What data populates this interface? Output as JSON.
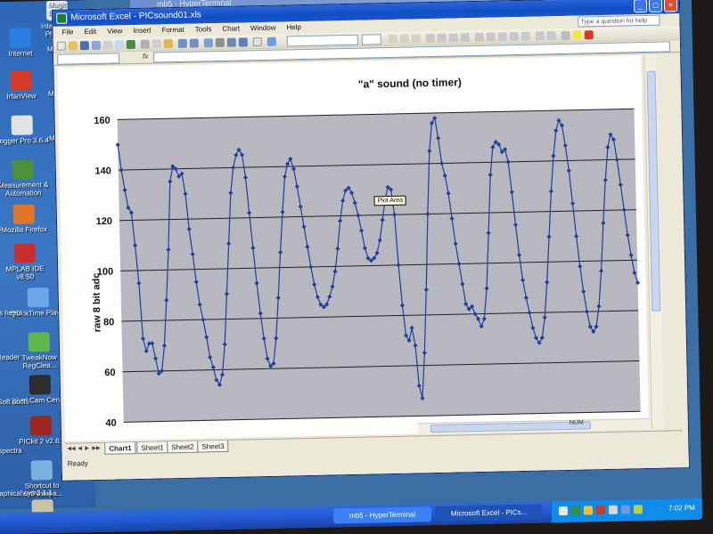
{
  "background_window": {
    "title": "mb5 - HyperTerminal"
  },
  "desktop": {
    "icons": [
      {
        "label": "Interactive Physics",
        "icon": "physics-icon",
        "color": "#d9e4f5"
      },
      {
        "label": "Internet",
        "icon": "internet-explorer-icon",
        "color": "#2a7de1"
      },
      {
        "label": "IrfanView",
        "icon": "irfanview-icon",
        "color": "#d23a2a"
      },
      {
        "label": "Logger Pro 3.6.4",
        "icon": "logger-pro-icon",
        "color": "#e2e2e2"
      },
      {
        "label": "Measurement & Automation",
        "icon": "measurement-icon",
        "color": "#4a8f3a"
      },
      {
        "label": "Mozilla Firefox",
        "icon": "firefox-icon",
        "color": "#e0762a"
      },
      {
        "label": "MPLAB IDE v8.50",
        "icon": "mplab-icon",
        "color": "#c63030"
      },
      {
        "label": "QuickTime Player",
        "icon": "quicktime-icon",
        "color": "#6aa7e8"
      },
      {
        "label": "TweakNow RegClea...",
        "icon": "tweaknow-icon",
        "color": "#5bb84a"
      },
      {
        "label": "Live! Cam Center",
        "icon": "camera-icon",
        "color": "#2d2d2d"
      },
      {
        "label": "PICkit 2 v2.61",
        "icon": "pickit-icon",
        "color": "#a02525"
      },
      {
        "label": "Shortcut to XmlNotepa...",
        "icon": "xmlnotepad-icon",
        "color": "#7ab0de"
      },
      {
        "label": "putty.exe",
        "icon": "putty-icon",
        "color": "#ccc4a0"
      }
    ],
    "cut_labels": [
      "Magic Briefcase",
      "MF",
      "MF",
      "MF",
      "Reader",
      "Soft ducts",
      "aphical sys 3.1.1",
      "Precision",
      "spectra",
      "bs",
      "cs heets",
      "20"
    ]
  },
  "excel": {
    "title": "Microsoft Excel - PICsound01.xls",
    "menu": [
      "File",
      "Edit",
      "View",
      "Insert",
      "Format",
      "Tools",
      "Chart",
      "Window",
      "Help"
    ],
    "help_placeholder": "Type a question for help",
    "fx_label": "fx",
    "sheet_tabs": [
      "Chart1",
      "Sheet1",
      "Sheet2",
      "Sheet3"
    ],
    "status": "Ready",
    "num_indicator": "NUM",
    "tooltip": "Plot Area"
  },
  "chart_data": {
    "type": "line",
    "title": "\"a\" sound (no timer)",
    "ylabel": "raw 8 bit adc",
    "xlabel": "",
    "ylim": [
      40,
      160
    ],
    "yticks": [
      40,
      60,
      80,
      100,
      120,
      140,
      160
    ],
    "grid": true,
    "legend": "none",
    "series": [
      {
        "values": [
          150,
          140,
          132,
          125,
          123,
          110,
          95,
          73,
          68,
          71,
          71,
          65,
          59,
          60,
          70,
          88,
          108,
          135,
          141,
          140,
          137,
          138,
          130,
          116,
          106,
          95,
          86,
          80,
          73,
          65,
          61,
          56,
          54,
          58,
          70,
          90,
          110,
          130,
          140,
          145,
          147,
          145,
          136,
          122,
          108,
          94,
          82,
          72,
          64,
          61,
          62,
          72,
          88,
          106,
          122,
          136,
          141,
          143,
          139,
          132,
          124,
          116,
          108,
          100,
          93,
          88,
          85,
          84,
          85,
          88,
          92,
          98,
          107,
          118,
          126,
          130,
          131,
          129,
          125,
          120,
          114,
          107,
          103,
          102,
          103,
          105,
          110,
          118,
          126,
          131,
          130,
          120,
          100,
          84,
          72,
          70,
          75,
          68,
          52,
          47,
          65,
          90,
          120,
          145,
          156,
          158,
          150,
          140,
          135,
          128,
          118,
          108,
          100,
          92,
          84,
          82,
          83,
          80,
          78,
          75,
          78,
          90,
          112,
          135,
          146,
          148,
          147,
          144,
          145,
          140,
          128,
          115,
          103,
          93,
          86,
          80,
          74,
          70,
          68,
          70,
          78,
          92,
          110,
          128,
          142,
          152,
          156,
          154,
          146,
          136,
          123,
          110,
          98,
          88,
          80,
          74,
          72,
          74,
          82,
          96,
          115,
          132,
          145,
          150,
          148,
          140,
          130,
          120,
          110,
          102,
          95,
          91
        ]
      }
    ]
  },
  "taskbar": {
    "buttons": [
      "mb5 - HyperTerminal",
      "Microsoft Excel - PICs..."
    ],
    "clock": "7:02 PM"
  }
}
